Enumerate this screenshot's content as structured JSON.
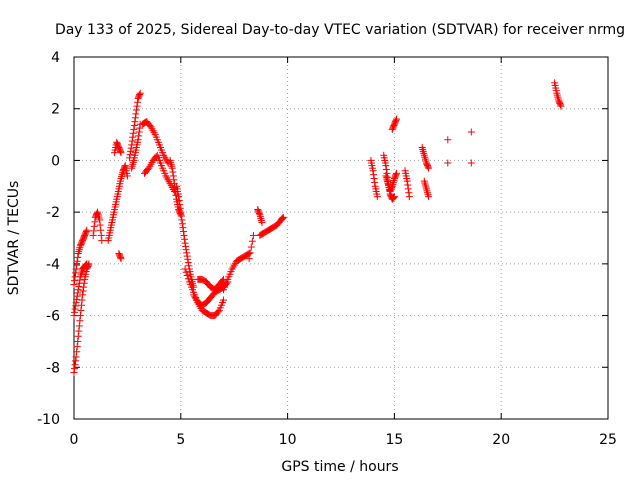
{
  "chart_data": {
    "type": "scatter",
    "title": "Day 133 of 2025, Sidereal Day-to-day VTEC variation (SDTVAR) for receiver nrmg",
    "xlabel": "GPS time / hours",
    "ylabel": "SDTVAR / TECUs",
    "xlim": [
      0,
      25
    ],
    "ylim": [
      -10,
      4
    ],
    "xticks": [
      0,
      5,
      10,
      15,
      20,
      25
    ],
    "yticks": [
      -10,
      -8,
      -6,
      -4,
      -2,
      0,
      2,
      4
    ],
    "xtick_labels": [
      "0",
      "5",
      "10",
      "15",
      "20",
      "25"
    ],
    "ytick_labels": [
      "-10",
      "-8",
      "-6",
      "-4",
      "-2",
      "0",
      "2",
      "4"
    ],
    "grid": true,
    "marker": "plus",
    "color": "#ff0000",
    "series": [
      {
        "name": "SDTVAR",
        "segments": [
          {
            "x": [
              0.0,
              0.1,
              0.2,
              0.3,
              0.4,
              0.5,
              0.6,
              0.7
            ],
            "y": [
              -8.2,
              -7.6,
              -6.8,
              -6.0,
              -5.2,
              -4.6,
              -4.2,
              -4.0
            ]
          },
          {
            "x": [
              0.0,
              0.1,
              0.2,
              0.3,
              0.4,
              0.5,
              0.6
            ],
            "y": [
              -6.0,
              -5.5,
              -5.0,
              -4.5,
              -4.2,
              -4.1,
              -4.0
            ]
          },
          {
            "x": [
              0.0,
              0.1,
              0.2,
              0.3,
              0.4,
              0.5,
              0.6
            ],
            "y": [
              -4.8,
              -4.2,
              -3.6,
              -3.3,
              -3.1,
              -2.9,
              -2.7
            ]
          },
          {
            "x": [
              0.9,
              1.0,
              1.1,
              1.2,
              1.3
            ],
            "y": [
              -2.9,
              -2.2,
              -2.0,
              -2.3,
              -3.1
            ]
          },
          {
            "x": [
              1.6,
              1.7,
              1.8,
              1.9,
              2.0,
              2.1,
              2.2,
              2.3,
              2.4,
              2.5
            ],
            "y": [
              -3.1,
              -2.7,
              -2.3,
              -1.9,
              -1.5,
              -1.1,
              -0.7,
              -0.4,
              -0.2,
              -0.6
            ]
          },
          {
            "x": [
              1.9,
              2.0,
              2.1,
              2.2
            ],
            "y": [
              0.3,
              0.7,
              0.5,
              0.3
            ]
          },
          {
            "x": [
              2.1,
              2.2
            ],
            "y": [
              -3.6,
              -3.8
            ]
          },
          {
            "x": [
              2.6,
              2.7,
              2.8,
              2.9,
              3.0,
              3.1
            ],
            "y": [
              0.1,
              0.6,
              1.2,
              1.8,
              2.4,
              2.6
            ]
          },
          {
            "x": [
              2.7,
              2.8,
              2.9,
              3.0,
              3.1
            ],
            "y": [
              -0.3,
              0.0,
              0.4,
              0.8,
              1.4
            ]
          },
          {
            "x": [
              3.2,
              3.4,
              3.6,
              3.8,
              4.0,
              4.2,
              4.4
            ],
            "y": [
              1.4,
              1.5,
              1.3,
              1.0,
              0.6,
              0.2,
              -0.1
            ]
          },
          {
            "x": [
              3.3,
              3.5,
              3.7,
              3.9,
              4.1,
              4.3,
              4.5,
              4.7
            ],
            "y": [
              -0.5,
              -0.3,
              0.0,
              0.2,
              -0.2,
              -0.6,
              -0.9,
              -1.2
            ]
          },
          {
            "x": [
              4.5,
              4.6,
              4.7,
              4.8,
              4.9,
              5.0
            ],
            "y": [
              0.0,
              -0.3,
              -0.9,
              -1.5,
              -1.9,
              -2.1
            ]
          },
          {
            "x": [
              4.8,
              4.9,
              5.0,
              5.1,
              5.2,
              5.3,
              5.4,
              5.5,
              5.6
            ],
            "y": [
              -1.0,
              -1.4,
              -2.0,
              -2.6,
              -3.2,
              -3.7,
              -4.2,
              -4.6,
              -4.9
            ]
          },
          {
            "x": [
              5.2,
              5.4,
              5.6,
              5.8,
              6.0,
              6.2,
              6.4,
              6.6,
              6.8,
              7.0
            ],
            "y": [
              -4.2,
              -4.7,
              -5.1,
              -5.5,
              -5.8,
              -5.9,
              -6.0,
              -6.0,
              -5.8,
              -5.4
            ]
          },
          {
            "x": [
              5.6,
              5.8,
              6.0,
              6.2,
              6.4,
              6.6,
              6.8,
              7.0,
              7.2
            ],
            "y": [
              -5.2,
              -5.5,
              -5.6,
              -5.5,
              -5.3,
              -5.1,
              -5.0,
              -4.9,
              -4.7
            ]
          },
          {
            "x": [
              5.8,
              6.0,
              6.2,
              6.4,
              6.6,
              6.8,
              7.0
            ],
            "y": [
              -4.6,
              -4.6,
              -4.7,
              -4.9,
              -5.0,
              -4.8,
              -4.6
            ]
          },
          {
            "x": [
              7.0,
              7.2,
              7.4,
              7.6,
              7.8,
              8.0,
              8.2
            ],
            "y": [
              -5.0,
              -4.6,
              -4.2,
              -3.9,
              -3.8,
              -3.7,
              -3.6
            ]
          },
          {
            "x": [
              8.2,
              8.4
            ],
            "y": [
              -3.8,
              -2.9
            ]
          },
          {
            "x": [
              8.6,
              8.7,
              8.8
            ],
            "y": [
              -1.9,
              -2.1,
              -2.4
            ]
          },
          {
            "x": [
              8.7,
              8.9,
              9.1,
              9.3,
              9.5,
              9.7,
              9.8
            ],
            "y": [
              -2.9,
              -2.8,
              -2.7,
              -2.6,
              -2.5,
              -2.3,
              -2.2
            ]
          },
          {
            "x": [
              13.9,
              14.0,
              14.1,
              14.2
            ],
            "y": [
              0.0,
              -0.4,
              -1.0,
              -1.4
            ]
          },
          {
            "x": [
              14.5,
              14.6,
              14.7,
              14.8,
              14.9,
              15.0
            ],
            "y": [
              0.2,
              -0.2,
              -0.8,
              -1.3,
              -1.5,
              -1.4
            ]
          },
          {
            "x": [
              14.6,
              14.7,
              14.8,
              14.9,
              15.0,
              15.1
            ],
            "y": [
              -0.6,
              -0.9,
              -1.2,
              -1.0,
              -0.7,
              -0.5
            ]
          },
          {
            "x": [
              14.9,
              15.0,
              15.1
            ],
            "y": [
              1.2,
              1.4,
              1.6
            ]
          },
          {
            "x": [
              15.5,
              15.6,
              15.7
            ],
            "y": [
              -0.4,
              -0.8,
              -1.4
            ]
          },
          {
            "x": [
              16.3,
              16.4,
              16.5,
              16.6
            ],
            "y": [
              0.5,
              0.2,
              -0.1,
              -0.3
            ]
          },
          {
            "x": [
              16.4,
              16.5,
              16.6
            ],
            "y": [
              -0.8,
              -1.1,
              -1.4
            ]
          },
          {
            "x": [
              17.5
            ],
            "y": [
              0.8
            ]
          },
          {
            "x": [
              17.5
            ],
            "y": [
              -0.1
            ]
          },
          {
            "x": [
              18.6
            ],
            "y": [
              1.1
            ]
          },
          {
            "x": [
              18.6
            ],
            "y": [
              -0.1
            ]
          },
          {
            "x": [
              22.5,
              22.6,
              22.7,
              22.8
            ],
            "y": [
              3.0,
              2.6,
              2.3,
              2.1
            ]
          }
        ]
      }
    ]
  }
}
